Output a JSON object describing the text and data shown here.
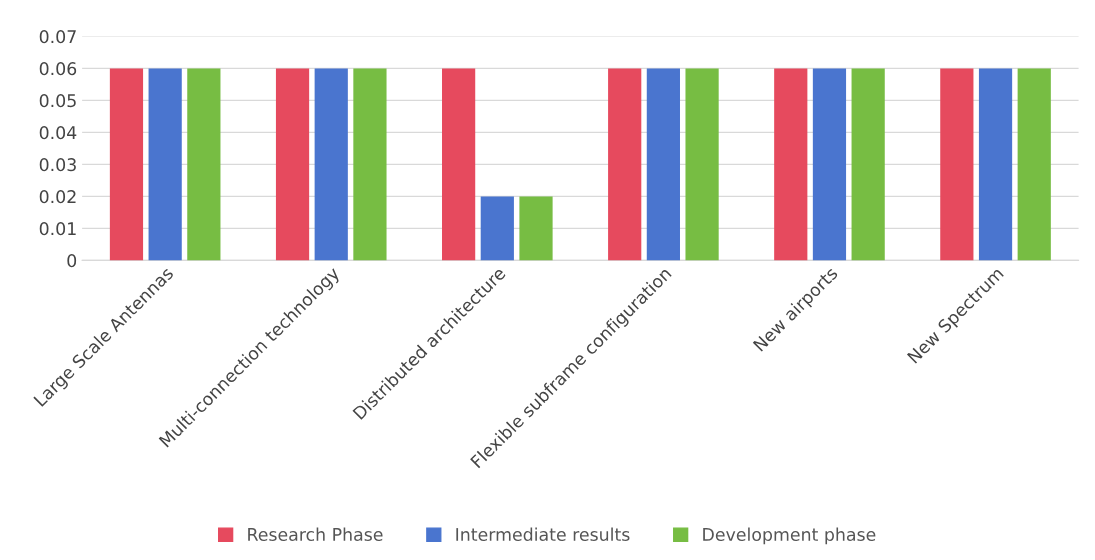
{
  "chart_data": {
    "type": "bar",
    "categories": [
      "Large Scale Antennas",
      "Multi-connection technology",
      "Distributed architecture",
      "Flexible subframe configuration",
      "New airports",
      "New Spectrum"
    ],
    "series": [
      {
        "name": "Research Phase",
        "color": "#e64a5e",
        "values": [
          0.06,
          0.06,
          0.06,
          0.06,
          0.06,
          0.06
        ]
      },
      {
        "name": "Intermediate results",
        "color": "#4a75cf",
        "values": [
          0.06,
          0.06,
          0.02,
          0.06,
          0.06,
          0.06
        ]
      },
      {
        "name": "Development phase",
        "color": "#77bd43",
        "values": [
          0.06,
          0.06,
          0.02,
          0.06,
          0.06,
          0.06
        ]
      }
    ],
    "ylim": [
      0,
      0.07
    ],
    "yticks": [
      0,
      0.01,
      0.02,
      0.03,
      0.04,
      0.05,
      0.06,
      0.07
    ],
    "grid": "y",
    "legend": "bottom"
  }
}
